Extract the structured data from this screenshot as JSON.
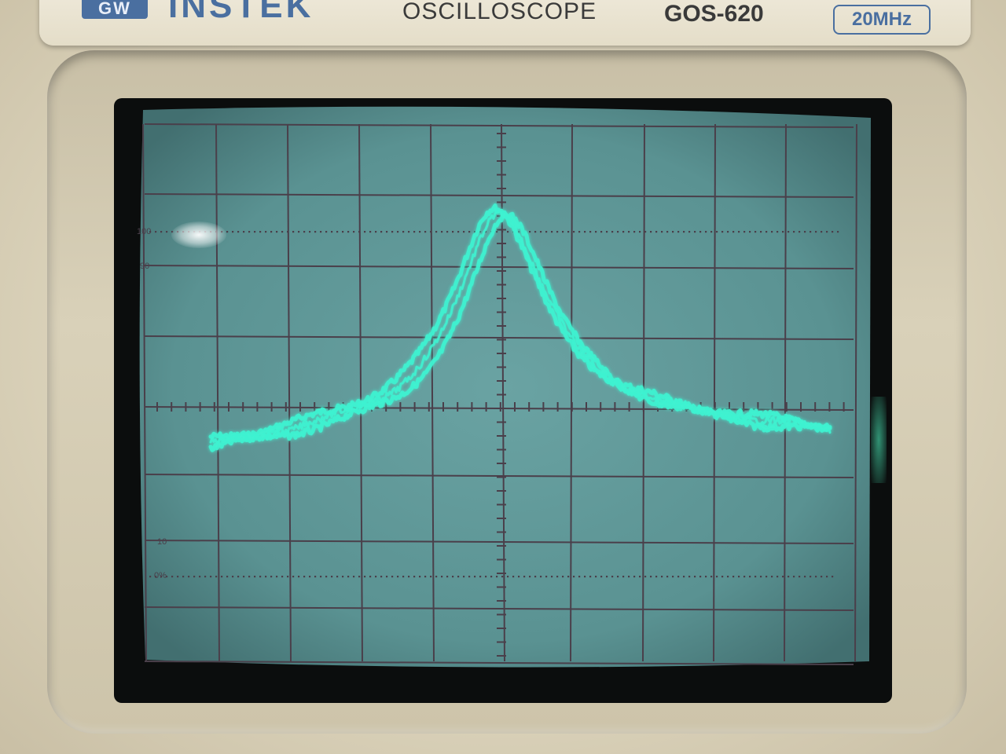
{
  "panel": {
    "logo_badge": "GW",
    "brand": "INSTEK",
    "device_type": "OSCILLOSCOPE",
    "model": "GOS-620",
    "bandwidth": "20MHz"
  },
  "graticule": {
    "label_100": "100",
    "label_90": "90",
    "label_10": "10",
    "label_0pct": "0%"
  },
  "colors": {
    "trace": "#3ff2d0",
    "screen": "#5e9595",
    "grid": "#4a3f4a",
    "bezel": "#ddd5bd",
    "brand_blue": "#4a6fa0"
  }
}
